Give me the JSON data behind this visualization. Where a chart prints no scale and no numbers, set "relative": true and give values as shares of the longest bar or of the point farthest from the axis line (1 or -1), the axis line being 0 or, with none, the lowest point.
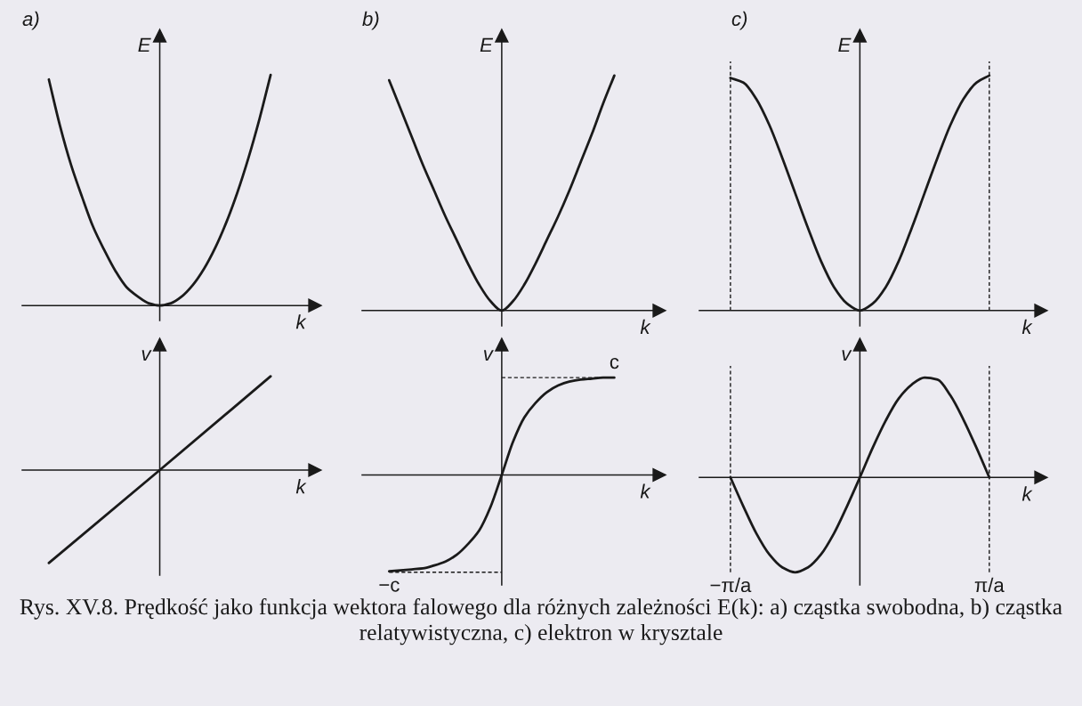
{
  "chart_data": [
    {
      "type": "line",
      "title": "a)",
      "xlabel": "k",
      "ylabel": "E",
      "relative": true,
      "categories": [
        null,
        null,
        null,
        null,
        null,
        null,
        null,
        null,
        null,
        null,
        null,
        null,
        null,
        null,
        null,
        null,
        null,
        null,
        null,
        null,
        null
      ],
      "series": [
        {
          "color": "#1a1a1a",
          "values": [
            0.98,
            0.78,
            0.61,
            0.47,
            0.34,
            0.24,
            0.15,
            0.08,
            0.04,
            0.01,
            0,
            0.01,
            0.04,
            0.09,
            0.16,
            0.25,
            0.36,
            0.49,
            0.64,
            0.81,
            1
          ]
        }
      ]
    },
    {
      "type": "line",
      "title": "b)",
      "xlabel": "k",
      "ylabel": "E",
      "relative": true,
      "categories": [
        null,
        null,
        null,
        null,
        null,
        null,
        null,
        null,
        null,
        null,
        null,
        null,
        null,
        null,
        null,
        null,
        null,
        null,
        null,
        null,
        null
      ],
      "series": [
        {
          "color": "#1a1a1a",
          "values": [
            0.98,
            0.86,
            0.74,
            0.62,
            0.51,
            0.4,
            0.3,
            0.2,
            0.11,
            0.04,
            0,
            0.04,
            0.11,
            0.2,
            0.3,
            0.4,
            0.51,
            0.63,
            0.75,
            0.88,
            1
          ]
        }
      ]
    },
    {
      "type": "line",
      "title": "c)",
      "xlabel": "k",
      "ylabel": "E",
      "relative": true,
      "categories": [
        "−π/a",
        null,
        null,
        null,
        null,
        null,
        null,
        null,
        null,
        null,
        null,
        null,
        null,
        null,
        null,
        null,
        null,
        null,
        null,
        null,
        "π/a"
      ],
      "tick_labels": false,
      "series": [
        {
          "color": "#1a1a1a",
          "values": [
            0.99,
            0.97,
            0.9,
            0.79,
            0.65,
            0.5,
            0.35,
            0.21,
            0.1,
            0.03,
            0,
            0.03,
            0.1,
            0.21,
            0.35,
            0.5,
            0.65,
            0.79,
            0.9,
            0.97,
            1
          ]
        }
      ],
      "ref_lines": [
        {
          "axis": "x",
          "value": "−π/a",
          "line_style": "dashed"
        },
        {
          "axis": "x",
          "value": "π/a",
          "line_style": "dashed"
        }
      ]
    },
    {
      "type": "line",
      "xlabel": "k",
      "ylabel": "v",
      "relative": true,
      "categories": [
        null,
        null,
        null
      ],
      "series": [
        {
          "color": "#1a1a1a",
          "values": [
            -0.99,
            0,
            1
          ]
        }
      ]
    },
    {
      "type": "line",
      "xlabel": "k",
      "ylabel": "v",
      "relative": true,
      "categories": [
        null,
        null,
        null,
        null,
        null,
        null,
        null,
        null,
        null,
        null,
        null,
        null,
        null,
        null,
        null,
        null,
        null,
        null,
        null,
        null,
        null
      ],
      "series": [
        {
          "color": "#1a1a1a",
          "values": [
            -0.99,
            -0.98,
            -0.97,
            -0.96,
            -0.93,
            -0.89,
            -0.82,
            -0.71,
            -0.57,
            -0.33,
            0,
            0.34,
            0.59,
            0.74,
            0.85,
            0.92,
            0.96,
            0.98,
            0.99,
            1,
            1
          ]
        }
      ],
      "ref_lines": [
        {
          "axis": "y",
          "value": 1,
          "label": "c",
          "line_style": "dashed"
        },
        {
          "axis": "y",
          "value": -1,
          "label": "−c",
          "line_style": "dashed"
        }
      ]
    },
    {
      "type": "line",
      "xlabel": "k",
      "ylabel": "v",
      "relative": true,
      "categories": [
        "−π/a",
        null,
        null,
        null,
        null,
        null,
        null,
        null,
        null,
        null,
        null,
        null,
        null,
        null,
        null,
        null,
        null,
        null,
        null,
        null,
        "π/a"
      ],
      "series": [
        {
          "color": "#1a1a1a",
          "values": [
            0,
            -0.29,
            -0.56,
            -0.77,
            -0.9,
            -0.95,
            -0.9,
            -0.77,
            -0.56,
            -0.29,
            0,
            0.3,
            0.57,
            0.79,
            0.93,
            1,
            0.98,
            0.82,
            0.58,
            0.3,
            0
          ]
        }
      ],
      "ref_lines": [
        {
          "axis": "x",
          "value": "−π/a",
          "line_style": "dashed"
        },
        {
          "axis": "x",
          "value": "π/a",
          "line_style": "dashed"
        }
      ],
      "annotations": [
        "Rys. XV.8. Prędkość jako funkcja wektora falowego dla różnych zależności E(k): a) cząstka swobodna, b) cząstka relatywistyczna, c) elektron w krysztale"
      ]
    }
  ]
}
